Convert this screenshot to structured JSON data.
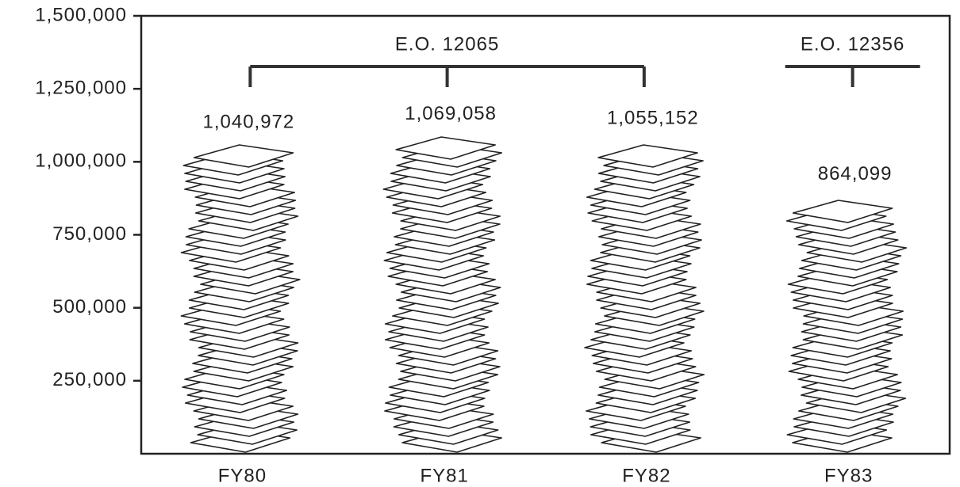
{
  "chart_data": {
    "type": "paper-stack",
    "categories": [
      "FY80",
      "FY81",
      "FY82",
      "FY83"
    ],
    "values": [
      1040972,
      1069058,
      1055152,
      864099
    ],
    "value_labels": [
      "1,040,972",
      "1,069,058",
      "1,055,152",
      "864,099"
    ],
    "ylim": [
      0,
      1500000
    ],
    "yticks": [
      {
        "value": 250000,
        "label": "250,000"
      },
      {
        "value": 500000,
        "label": "500,000"
      },
      {
        "value": 750000,
        "label": "750,000"
      },
      {
        "value": 1000000,
        "label": "1,000,000"
      },
      {
        "value": 1250000,
        "label": "1,250,000"
      },
      {
        "value": 1500000,
        "label": "1,500,000"
      }
    ],
    "annotations": [
      {
        "text": "E.O. 12065"
      },
      {
        "text": "E.O. 12356"
      }
    ],
    "color": "#ffffff"
  }
}
